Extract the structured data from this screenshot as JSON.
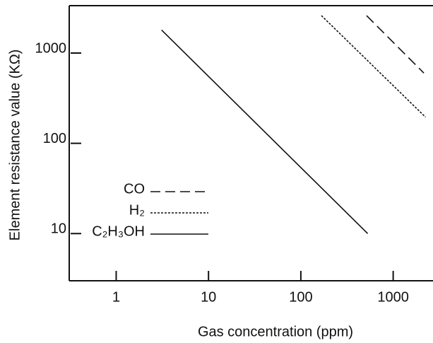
{
  "chart_data": {
    "type": "line",
    "xlabel": "Gas concentration (ppm)",
    "ylabel": "Element resistance value (KΩ)",
    "log_x": true,
    "log_y": true,
    "xlim": [
      0.31,
      2700
    ],
    "ylim": [
      3,
      3350
    ],
    "xticks": [
      1,
      10,
      100,
      1000
    ],
    "yticks": [
      10,
      100,
      1000
    ],
    "legend": "lower left",
    "series": [
      {
        "name": "CO",
        "color": "#111111",
        "linestyle": "dashed",
        "x": [
          515,
          2150
        ],
        "values": [
          2600,
          600
        ]
      },
      {
        "name": "H₂",
        "color": "#111111",
        "linestyle": "dotted",
        "x": [
          167,
          2240
        ],
        "values": [
          2600,
          195
        ]
      },
      {
        "name": "C₂H₃OH",
        "color": "#111111",
        "linestyle": "solid",
        "x": [
          3.1,
          530
        ],
        "values": [
          1800,
          10
        ]
      }
    ]
  }
}
